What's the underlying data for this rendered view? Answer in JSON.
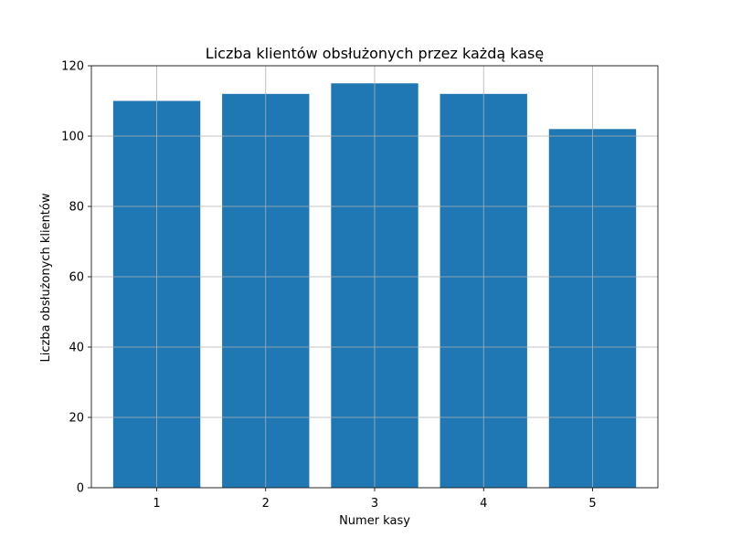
{
  "chart_data": {
    "type": "bar",
    "title": "Liczba klientów obsłużonych przez każdą kasę",
    "xlabel": "Numer kasy",
    "ylabel": "Liczba obsłużonych klientów",
    "categories": [
      "1",
      "2",
      "3",
      "4",
      "5"
    ],
    "values": [
      110,
      112,
      115,
      112,
      102
    ],
    "ylim": [
      0,
      120
    ],
    "yticks": [
      0,
      20,
      40,
      60,
      80,
      100,
      120
    ],
    "grid": true,
    "bar_color": "#1f77b4",
    "grid_color": "#b0b0b0"
  }
}
